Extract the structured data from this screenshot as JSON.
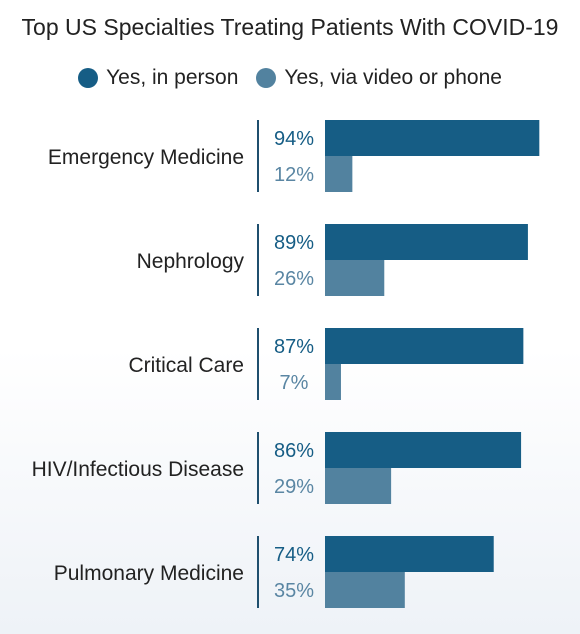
{
  "chart_data": {
    "type": "bar",
    "orientation": "horizontal",
    "title": "Top US Specialties Treating Patients With COVID-19",
    "categories": [
      "Emergency Medicine",
      "Nephrology",
      "Critical Care",
      "HIV/Infectious Disease",
      "Pulmonary Medicine"
    ],
    "series": [
      {
        "name": "Yes, in person",
        "values": [
          94,
          89,
          87,
          86,
          74
        ],
        "color": "#165d85",
        "label_color": "#165d85"
      },
      {
        "name": "Yes, via video or phone",
        "values": [
          12,
          26,
          7,
          29,
          35
        ],
        "color": "#52829f",
        "label_color": "#5a86a3"
      }
    ],
    "value_suffix": "%",
    "xlim": [
      0,
      100
    ],
    "legend_position": "top",
    "grid": false
  }
}
